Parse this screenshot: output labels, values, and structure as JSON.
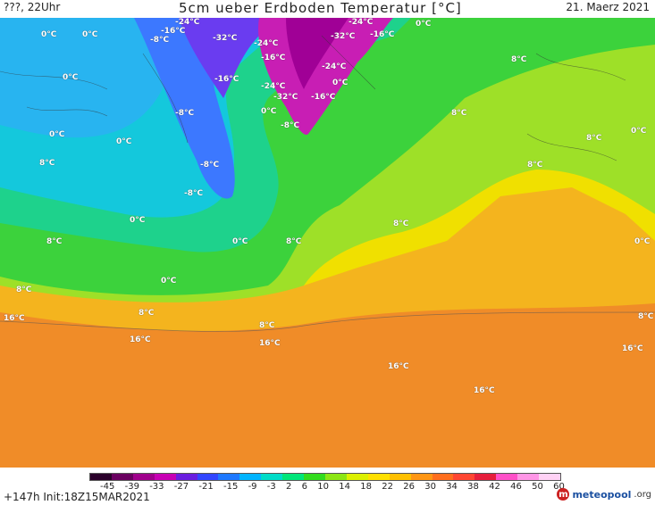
{
  "header": {
    "left": "???, 22Uhr",
    "title": "5cm ueber Erdboden Temperatur [°C]",
    "date": "21. Maerz 2021"
  },
  "map_labels": [
    "0°C",
    "8°C",
    "16°C",
    "-8°C",
    "-16°C",
    "-24°C",
    "-32°C"
  ],
  "legend": {
    "ticks": [
      "-45",
      "-39",
      "-33",
      "-27",
      "-21",
      "-15",
      "-9",
      "-3",
      "2",
      "6",
      "10",
      "14",
      "18",
      "22",
      "26",
      "30",
      "34",
      "38",
      "42",
      "46",
      "50",
      "60"
    ],
    "colors": [
      "#2a002a",
      "#6a0060",
      "#a0008c",
      "#c800b4",
      "#6a1ee0",
      "#3246ff",
      "#1e78ff",
      "#00b4ff",
      "#00dcc8",
      "#00e67a",
      "#32dc1e",
      "#8ce614",
      "#dcf000",
      "#ffe000",
      "#ffc000",
      "#ff9614",
      "#ff6e1e",
      "#ff4632",
      "#e61e3c",
      "#ff50c8",
      "#ff96e6",
      "#ffd2f5"
    ]
  },
  "footer": {
    "run_info": "+147h Init:18Z15MAR2021",
    "logo": "meteopool",
    "logo_tld": ".org"
  }
}
